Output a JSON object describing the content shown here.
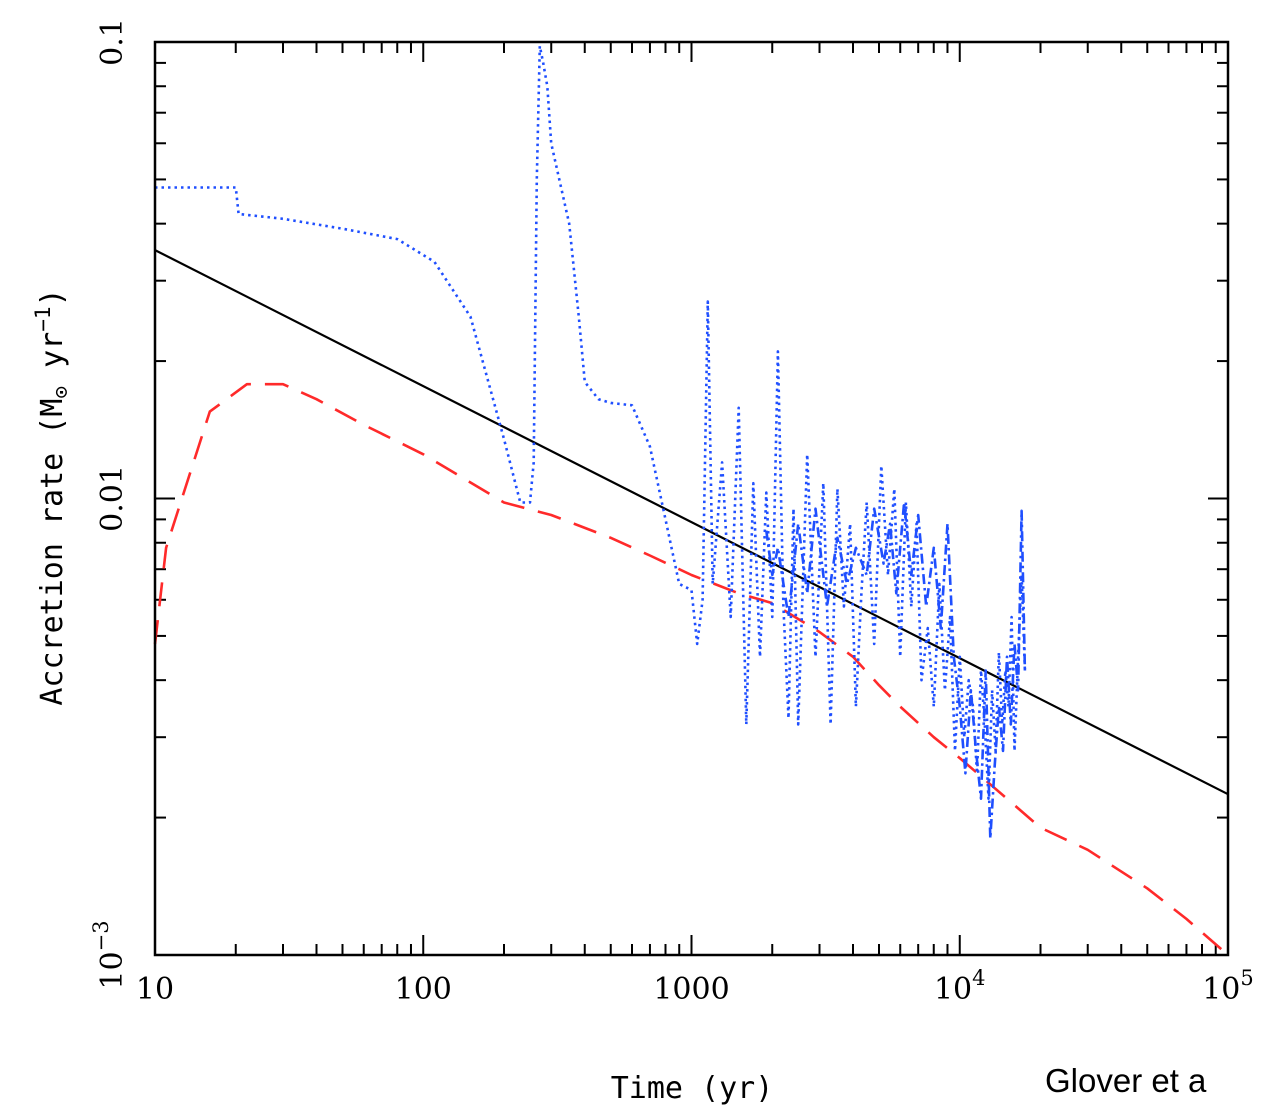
{
  "credit": "Glover et a",
  "chart_data": {
    "type": "line",
    "title": "",
    "xlabel": "Time (yr)",
    "ylabel_main": "Accretion rate (M",
    "ylabel_sub": "⊙",
    "ylabel_tail": " yr",
    "ylabel_sup": "−1",
    "ylabel_close": ")",
    "xscale": "log",
    "yscale": "log",
    "xlim": [
      10,
      100000
    ],
    "ylim": [
      0.001,
      0.1
    ],
    "x_ticks": [
      {
        "value": 10,
        "label": "10"
      },
      {
        "value": 100,
        "label": "100"
      },
      {
        "value": 1000,
        "label": "1000"
      },
      {
        "value": 10000,
        "label": "10",
        "sup": "4"
      },
      {
        "value": 100000,
        "label": "10",
        "sup": "5"
      }
    ],
    "y_ticks": [
      {
        "value": 0.001,
        "label": "10",
        "sup": "−3"
      },
      {
        "value": 0.01,
        "label": "0.01"
      },
      {
        "value": 0.1,
        "label": "0.1"
      }
    ],
    "grid": false,
    "legend": "none",
    "series": [
      {
        "style": "solid",
        "color": "#000000",
        "x": [
          10,
          100000
        ],
        "y": [
          0.035,
          0.00225
        ]
      },
      {
        "style": "dashed",
        "color": "#ff2a2a",
        "x": [
          10,
          11,
          16,
          22,
          30,
          40,
          60,
          100,
          200,
          300,
          500,
          700,
          1000,
          1500,
          2000,
          3000,
          4000,
          5000,
          6000,
          8000,
          10000,
          15000,
          20000,
          30000,
          50000,
          70000,
          100000
        ],
        "y": [
          0.0048,
          0.0078,
          0.0155,
          0.0178,
          0.0178,
          0.0165,
          0.0145,
          0.0125,
          0.0098,
          0.0092,
          0.0082,
          0.0075,
          0.0068,
          0.0062,
          0.0059,
          0.0051,
          0.0045,
          0.0039,
          0.0035,
          0.003,
          0.0027,
          0.0022,
          0.0019,
          0.0017,
          0.0014,
          0.0012,
          0.001
        ]
      },
      {
        "style": "dotted",
        "color": "#1f4fff",
        "x": [
          10,
          20,
          20.5,
          30,
          50,
          80,
          110,
          150,
          200,
          230,
          250,
          258,
          265,
          272,
          280,
          290,
          300,
          350,
          380,
          400,
          450,
          500,
          600,
          700,
          800,
          900,
          1000,
          1050,
          1100,
          1150,
          1200,
          1300,
          1400,
          1500,
          1600,
          1700,
          1800,
          1900,
          2000,
          2100,
          2200,
          2300,
          2400,
          2500,
          2700,
          2900,
          3100,
          3300,
          3500,
          3700,
          3900,
          4100,
          4300,
          4500,
          4800,
          5100,
          5400,
          5700,
          6000,
          6300,
          6600,
          6900,
          7200,
          7600,
          8000,
          8400,
          8800,
          9200,
          9600,
          10000,
          10400,
          10800,
          11200,
          11600,
          12000,
          12400,
          12800,
          13200,
          13600,
          14000,
          14400,
          14800,
          15200,
          15600,
          16000,
          16500,
          17000,
          17500
        ],
        "y": [
          0.048,
          0.048,
          0.042,
          0.041,
          0.039,
          0.037,
          0.033,
          0.025,
          0.0135,
          0.0098,
          0.0098,
          0.012,
          0.05,
          0.098,
          0.09,
          0.08,
          0.06,
          0.04,
          0.025,
          0.018,
          0.0165,
          0.0162,
          0.016,
          0.013,
          0.009,
          0.0065,
          0.0063,
          0.0048,
          0.006,
          0.027,
          0.0065,
          0.012,
          0.0055,
          0.0158,
          0.0032,
          0.0108,
          0.0045,
          0.0103,
          0.0055,
          0.021,
          0.0058,
          0.0033,
          0.0095,
          0.0032,
          0.0125,
          0.0045,
          0.0108,
          0.0032,
          0.0105,
          0.0058,
          0.0088,
          0.0035,
          0.0062,
          0.0098,
          0.0048,
          0.0118,
          0.0068,
          0.0105,
          0.0045,
          0.0098,
          0.0058,
          0.0088,
          0.004,
          0.0052,
          0.0035,
          0.0065,
          0.0038,
          0.0055,
          0.0028,
          0.0045,
          0.003,
          0.004,
          0.0035,
          0.0025,
          0.0042,
          0.0032,
          0.0022,
          0.0038,
          0.0028,
          0.0046,
          0.0032,
          0.0042,
          0.0035,
          0.0055,
          0.0028,
          0.0045,
          0.0068,
          0.0042
        ]
      },
      {
        "style": "dashdot",
        "color": "#1f4fff",
        "x": [
          1900,
          2000,
          2100,
          2300,
          2500,
          2700,
          2900,
          3200,
          3500,
          3800,
          4100,
          4500,
          4800,
          5200,
          5500,
          5800,
          6200,
          6600,
          7000,
          7500,
          8000,
          8500,
          9000,
          9500,
          10000,
          10500,
          11000,
          11500,
          12000,
          12500,
          13000,
          13500,
          14000,
          14500,
          15000,
          15500,
          16000,
          16500,
          17000,
          17500
        ],
        "y": [
          0.0085,
          0.0068,
          0.0078,
          0.0055,
          0.0088,
          0.0062,
          0.0095,
          0.0058,
          0.0082,
          0.0065,
          0.0078,
          0.0068,
          0.0095,
          0.0072,
          0.0088,
          0.0062,
          0.0098,
          0.0068,
          0.0092,
          0.0058,
          0.0078,
          0.0052,
          0.0088,
          0.0045,
          0.0035,
          0.0025,
          0.0038,
          0.0028,
          0.0022,
          0.0042,
          0.0018,
          0.0026,
          0.0035,
          0.0028,
          0.0045,
          0.0032,
          0.0048,
          0.0038,
          0.0094,
          0.0042
        ]
      }
    ]
  }
}
